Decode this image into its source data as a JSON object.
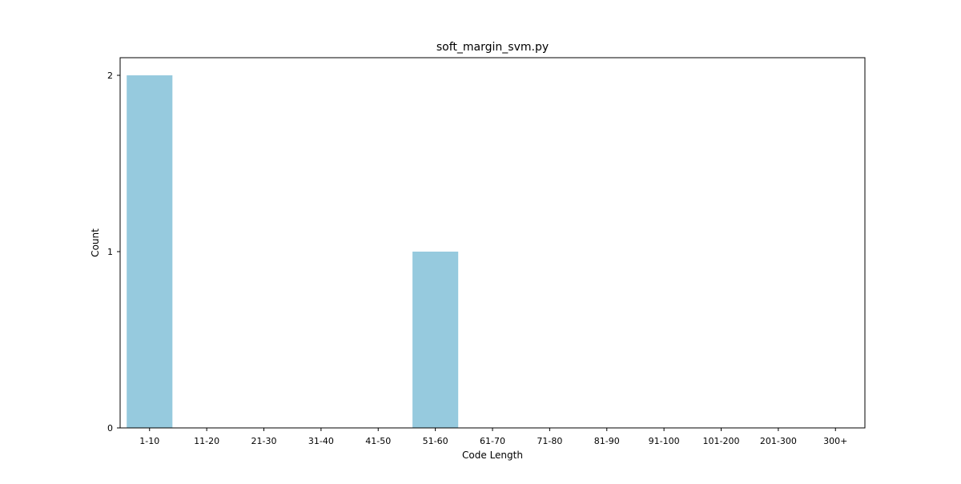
{
  "chart_data": {
    "type": "bar",
    "title": "soft_margin_svm.py",
    "xlabel": "Code Length",
    "ylabel": "Count",
    "categories": [
      "1-10",
      "11-20",
      "21-30",
      "31-40",
      "41-50",
      "51-60",
      "61-70",
      "71-80",
      "81-90",
      "91-100",
      "101-200",
      "201-300",
      "300+"
    ],
    "values": [
      2,
      0,
      0,
      0,
      0,
      1,
      0,
      0,
      0,
      0,
      0,
      0,
      0
    ],
    "ylim": [
      0,
      2.1
    ],
    "yticks": [
      0,
      1,
      2
    ],
    "bar_color": "#96cade",
    "grid": false,
    "legend": "none"
  }
}
